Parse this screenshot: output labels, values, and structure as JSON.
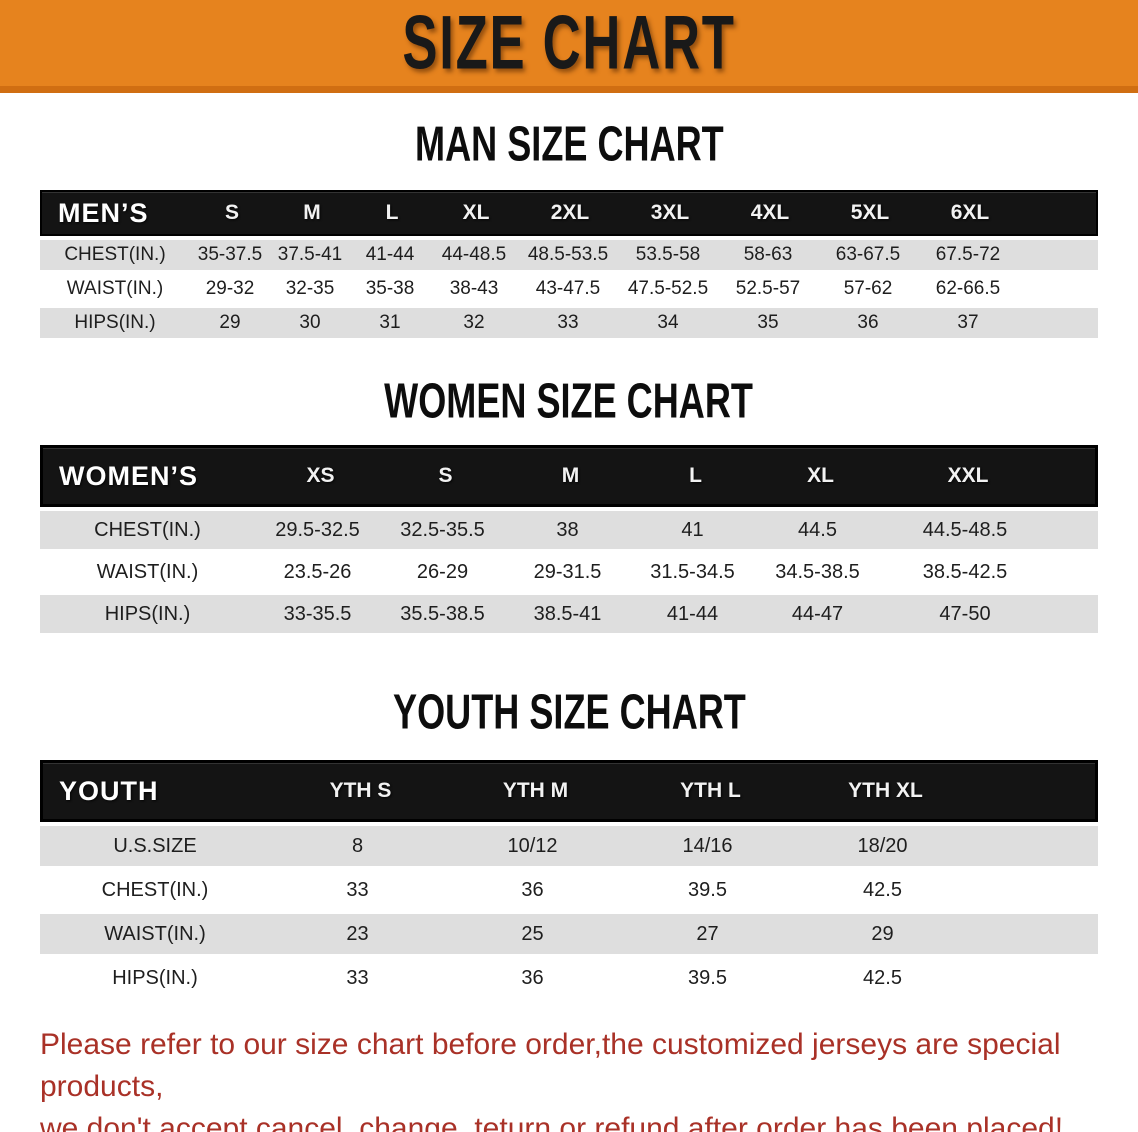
{
  "banner": {
    "title": "SIZE CHART",
    "bg_color": "#E6831E",
    "border_color": "#D06E12",
    "text_color": "#191919"
  },
  "men": {
    "title": "MAN SIZE CHART",
    "header_label": "MEN’S",
    "columns": [
      "S",
      "M",
      "L",
      "XL",
      "2XL",
      "3XL",
      "4XL",
      "5XL",
      "6XL"
    ],
    "rows": [
      {
        "label": "CHEST(IN.)",
        "values": [
          "35-37.5",
          "37.5-41",
          "41-44",
          "44-48.5",
          "48.5-53.5",
          "53.5-58",
          "58-63",
          "63-67.5",
          "67.5-72"
        ]
      },
      {
        "label": "WAIST(IN.)",
        "values": [
          "29-32",
          "32-35",
          "35-38",
          "38-43",
          "43-47.5",
          "47.5-52.5",
          "52.5-57",
          "57-62",
          "62-66.5"
        ]
      },
      {
        "label": "HIPS(IN.)",
        "values": [
          "29",
          "30",
          "31",
          "32",
          "33",
          "34",
          "35",
          "36",
          "37"
        ]
      }
    ]
  },
  "women": {
    "title": "WOMEN SIZE CHART",
    "header_label": "WOMEN’S",
    "columns": [
      "XS",
      "S",
      "M",
      "L",
      "XL",
      "XXL"
    ],
    "rows": [
      {
        "label": "CHEST(IN.)",
        "values": [
          "29.5-32.5",
          "32.5-35.5",
          "38",
          "41",
          "44.5",
          "44.5-48.5"
        ]
      },
      {
        "label": "WAIST(IN.)",
        "values": [
          "23.5-26",
          "26-29",
          "29-31.5",
          "31.5-34.5",
          "34.5-38.5",
          "38.5-42.5"
        ]
      },
      {
        "label": "HIPS(IN.)",
        "values": [
          "33-35.5",
          "35.5-38.5",
          "38.5-41",
          "41-44",
          "44-47",
          "47-50"
        ]
      }
    ]
  },
  "youth": {
    "title": "YOUTH SIZE CHART",
    "header_label": "YOUTH",
    "columns": [
      "YTH S",
      "YTH M",
      "YTH L",
      "YTH XL"
    ],
    "rows": [
      {
        "label": "U.S.SIZE",
        "values": [
          "8",
          "10/12",
          "14/16",
          "18/20"
        ]
      },
      {
        "label": "CHEST(IN.)",
        "values": [
          "33",
          "36",
          "39.5",
          "42.5"
        ]
      },
      {
        "label": "WAIST(IN.)",
        "values": [
          "23",
          "25",
          "27",
          "29"
        ]
      },
      {
        "label": "HIPS(IN.)",
        "values": [
          "33",
          "36",
          "39.5",
          "42.5"
        ]
      }
    ]
  },
  "disclaimer": {
    "color": "#A93127",
    "lines": [
      "Please refer to our size chart before order,the customized jerseys are special products,",
      "we don't accept cancel, change, teturn or refund after order has been placed!"
    ]
  },
  "row_colors": {
    "gray": "#DEDEDE",
    "white": "#FFFFFF",
    "header": "#141414"
  }
}
